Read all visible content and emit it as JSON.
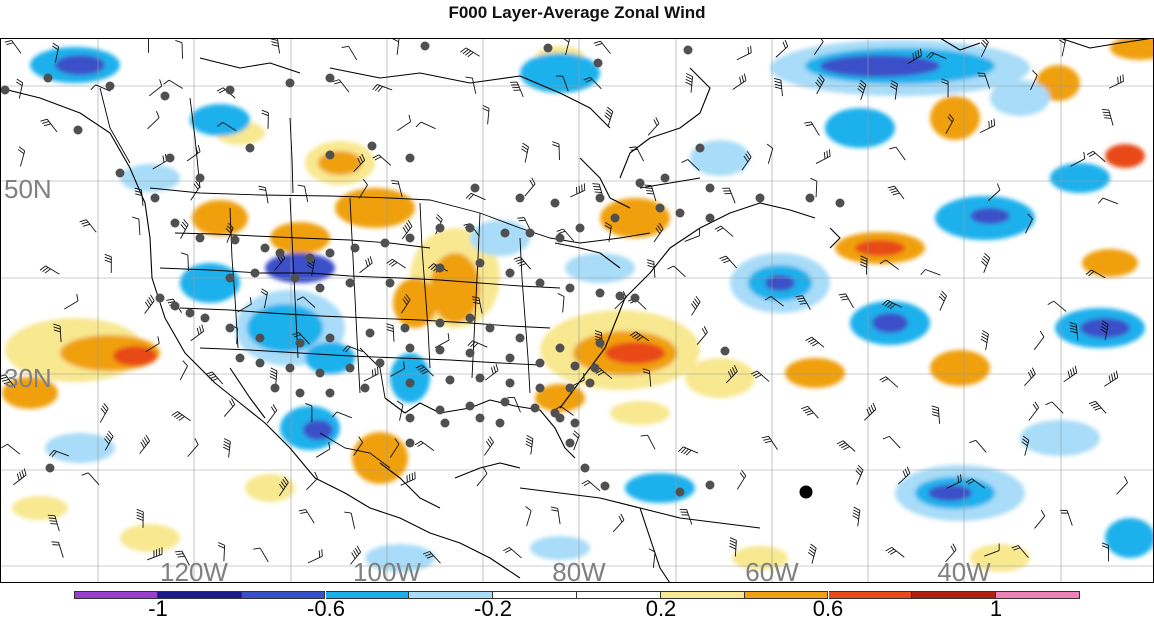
{
  "title": "F000 Layer-Average Zonal Wind",
  "map": {
    "projection": "lat-lon",
    "lat_range": [
      0,
      70
    ],
    "lon_range": [
      -140,
      -20
    ],
    "lat_labels": [
      "50N",
      "30N"
    ],
    "lon_labels": [
      "120W",
      "100W",
      "80W",
      "60W",
      "40W"
    ],
    "grid": true
  },
  "colorbar": {
    "colors": [
      "#9a3fcf",
      "#1a1a8c",
      "#3a50c8",
      "#1ab0ec",
      "#a8dcf8",
      "#ffffff",
      "#ffffff",
      "#f8e890",
      "#f0a010",
      "#e84a18",
      "#b02010",
      "#f080b8"
    ],
    "labels": [
      "-1",
      "-0.6",
      "-0.2",
      "0.2",
      "0.6",
      "1"
    ],
    "value_min": -1.2,
    "value_max": 1.2,
    "value_step": 0.2
  },
  "colors": {
    "land_outline": "#000000",
    "station_dot": "#505050",
    "highlight_dot": "#000000",
    "grid_line": "#9a9a9a",
    "label_gray": "#808080"
  }
}
